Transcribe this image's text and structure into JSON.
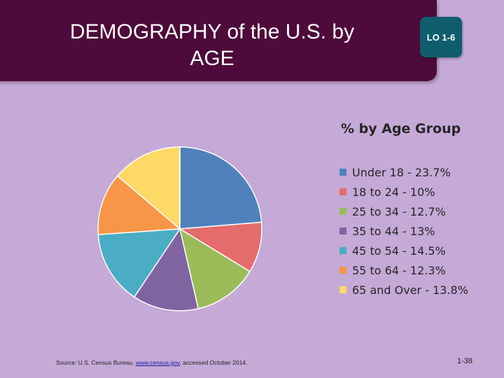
{
  "slide": {
    "title_line1": "DEMOGRAPHY of the U.S. by",
    "title_line2": "AGE",
    "lo_badge": "LO 1-6",
    "source_prefix": "Source: U.S. Census Bureau, ",
    "source_link": "www.census.gov",
    "source_suffix": ", accessed October 2014.",
    "page_number": "1-38"
  },
  "chart_data": {
    "type": "pie",
    "title": "% by Age Group",
    "categories": [
      "Under 18",
      "18 to 24",
      "25 to 34",
      "35 to 44",
      "45 to 54",
      "55 to 64",
      "65 and Over"
    ],
    "values": [
      23.7,
      10,
      12.7,
      13,
      14.5,
      12.3,
      13.8
    ],
    "legend_labels": [
      "Under 18 - 23.7%",
      "18 to 24 - 10%",
      "25 to 34 - 12.7%",
      "35 to 44 - 13%",
      "45 to 54 - 14.5%",
      "55 to 64 - 12.3%",
      "65 and Over - 13.8%"
    ],
    "colors": [
      "#4f81bd",
      "#e46c6c",
      "#9bbb59",
      "#8064a2",
      "#4bacc6",
      "#f79646",
      "#ffd966"
    ],
    "legend_position": "right"
  }
}
